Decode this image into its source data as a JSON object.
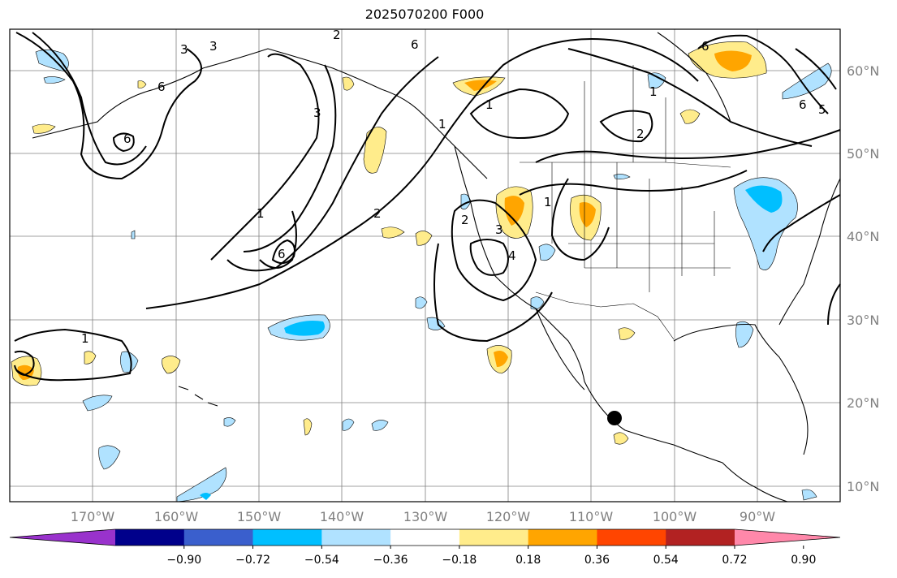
{
  "title": "2025070200 F000",
  "lat_labels": [
    "60°N",
    "50°N",
    "40°N",
    "30°N",
    "20°N",
    "10°N"
  ],
  "lon_labels": [
    "170°W",
    "160°W",
    "150°W",
    "140°W",
    "130°W",
    "120°W",
    "110°W",
    "100°W",
    "90°W"
  ],
  "colorbar": {
    "colors": [
      "#9932cc",
      "#00008b",
      "#3a5fcd",
      "#00bfff",
      "#b0e2ff",
      "#ffffff",
      "#ffec8b",
      "#ffa500",
      "#ff4500",
      "#b22222",
      "#ff88aa"
    ],
    "tick_labels": [
      "−0.90",
      "−0.72",
      "−0.54",
      "−0.36",
      "−0.18",
      "0.18",
      "0.36",
      "0.54",
      "0.72",
      "0.90"
    ],
    "extend": "both"
  },
  "contour_labels": [
    "3",
    "3",
    "2",
    "6",
    "6",
    "1",
    "2",
    "1",
    "1",
    "2",
    "3",
    "4",
    "6",
    "3",
    "1",
    "6",
    "6",
    "2",
    "1",
    "6",
    "5",
    "1"
  ],
  "colors": {
    "positive_light": "#ffec8b",
    "positive_mid": "#ffa500",
    "negative_light": "#b0e2ff",
    "negative_mid": "#00bfff",
    "grid": "#808080"
  }
}
